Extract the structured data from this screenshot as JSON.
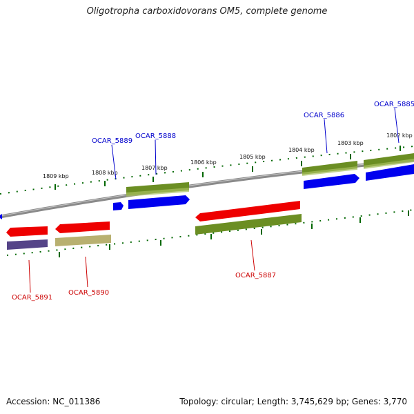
{
  "title": "Oligotropha carboxidovorans OM5, complete genome",
  "footer": {
    "accession": "Accession: NC_011386",
    "summary": "Topology: circular; Length: 3,745,629 bp; Genes: 3,770"
  },
  "colors": {
    "forward_gene": "#0000ee",
    "reverse_gene": "#ee0000",
    "forward_cds": "#6b8e23",
    "reverse_cds_a": "#554488",
    "reverse_cds_b": "#b8b070",
    "genome_backbone": "#888888",
    "tick": "#006600",
    "label_forward": "#0000cc",
    "label_reverse": "#cc0000"
  },
  "scale_labels": [
    "1809 kbp",
    "1808 kbp",
    "1807 kbp",
    "1806 kbp",
    "1805 kbp",
    "1804 kbp",
    "1803 kbp",
    "1802 kbp"
  ],
  "genes": [
    {
      "id": "OCAR_5885",
      "strand": "forward"
    },
    {
      "id": "OCAR_5886",
      "strand": "forward"
    },
    {
      "id": "OCAR_5888",
      "strand": "forward"
    },
    {
      "id": "OCAR_5889",
      "strand": "forward"
    },
    {
      "id": "OCAR_5887",
      "strand": "reverse"
    },
    {
      "id": "OCAR_5890",
      "strand": "reverse"
    },
    {
      "id": "OCAR_5891",
      "strand": "reverse"
    }
  ]
}
